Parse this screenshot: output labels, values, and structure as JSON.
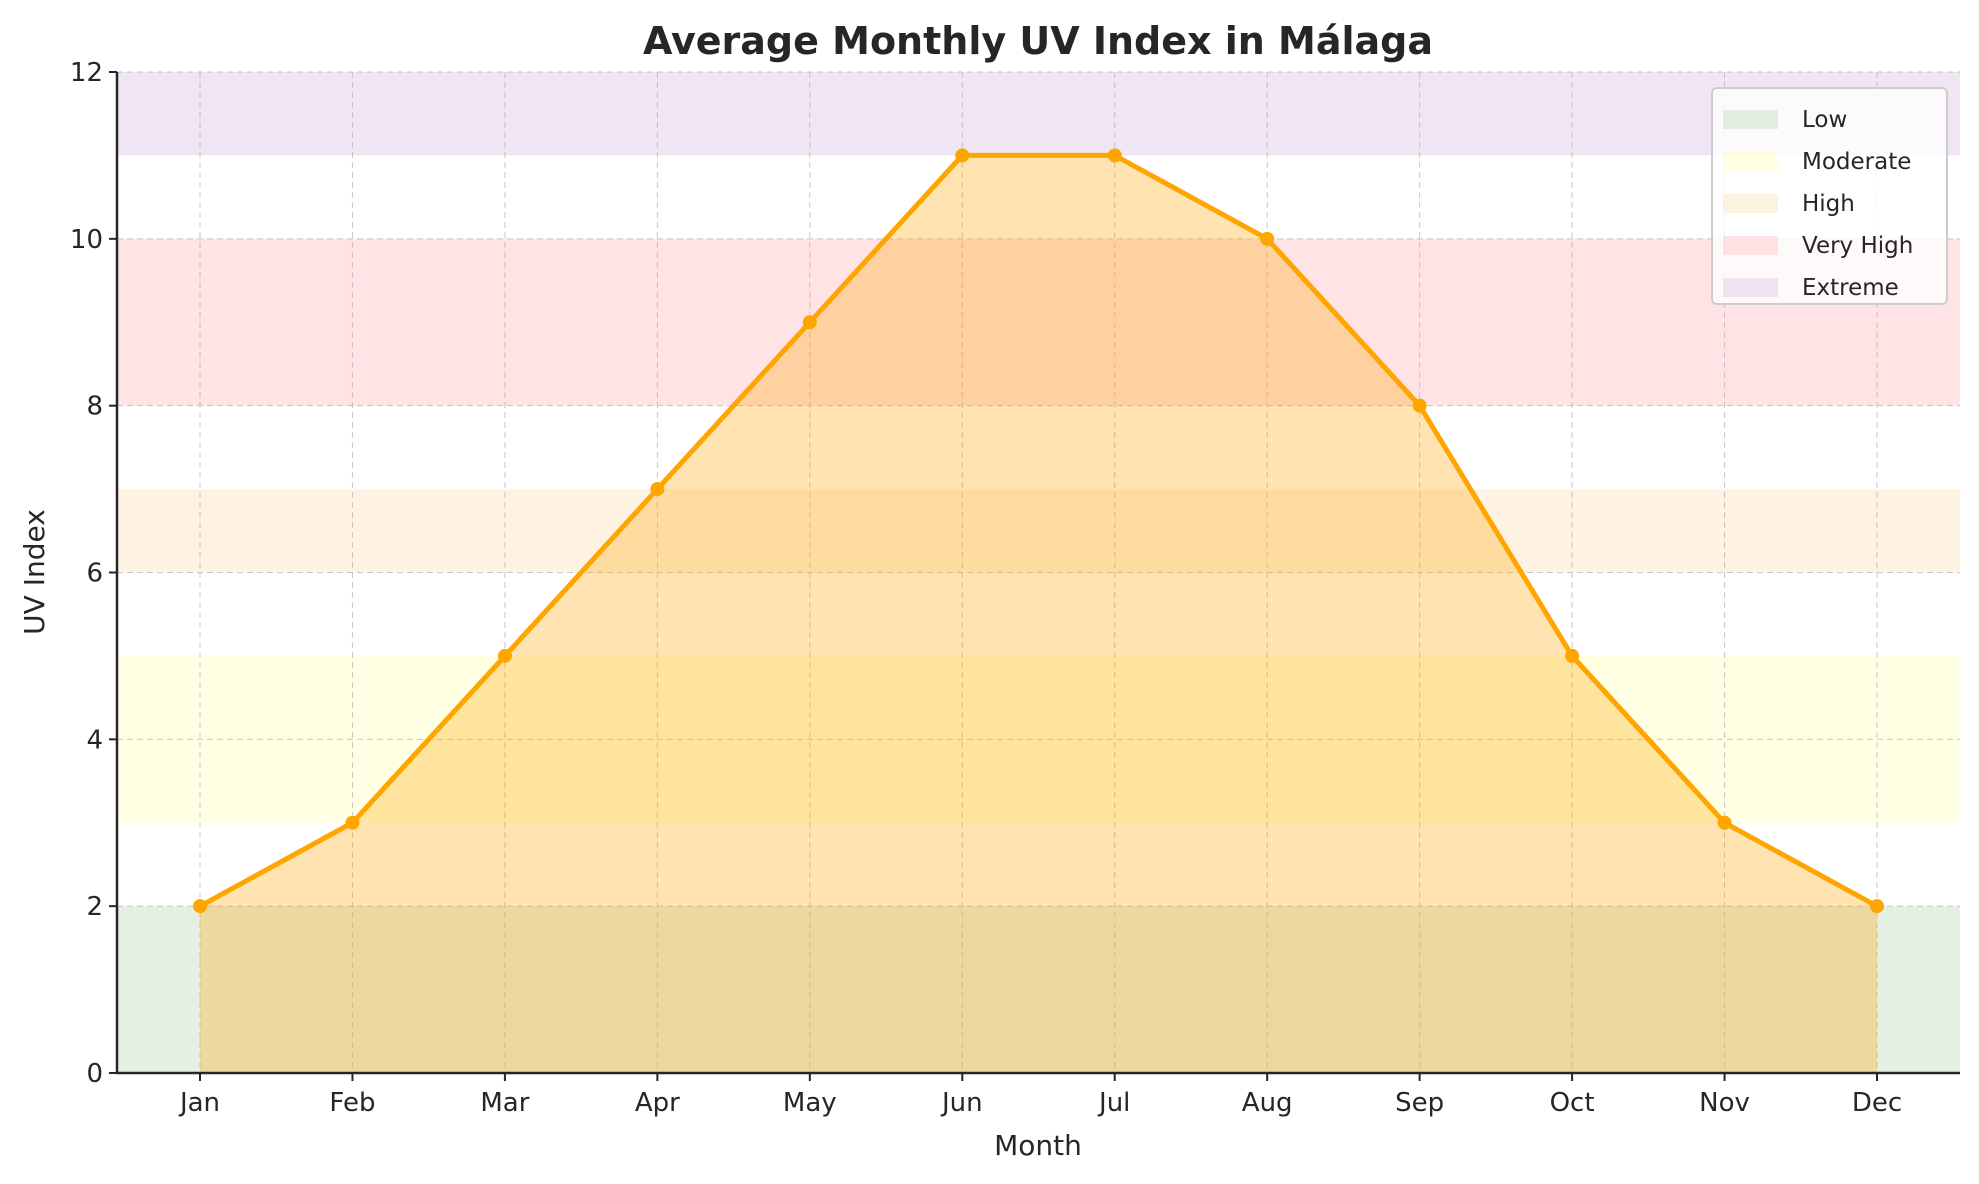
{
  "chart_data": {
    "type": "area",
    "title": "Average Monthly UV Index in Málaga",
    "xlabel": "Month",
    "ylabel": "UV Index",
    "categories": [
      "Jan",
      "Feb",
      "Mar",
      "Apr",
      "May",
      "Jun",
      "Jul",
      "Aug",
      "Sep",
      "Oct",
      "Nov",
      "Dec"
    ],
    "values": [
      2,
      3,
      5,
      7,
      9,
      11,
      11,
      10,
      8,
      5,
      3,
      2
    ],
    "ylim": [
      0,
      12
    ],
    "yticks": [
      0,
      2,
      4,
      6,
      8,
      10,
      12
    ],
    "grid": true,
    "legend_position": "top-right",
    "line_color": "#FFA500",
    "fill_color": "#FFA500",
    "bands": [
      {
        "name": "Low",
        "range": [
          0,
          2
        ],
        "color": "#C8E2C8"
      },
      {
        "name": "Moderate",
        "range": [
          3,
          5
        ],
        "color": "#FFFFC8"
      },
      {
        "name": "High",
        "range": [
          6,
          7
        ],
        "color": "#FDE8C8"
      },
      {
        "name": "Very High",
        "range": [
          8,
          10
        ],
        "color": "#FFC8CC"
      },
      {
        "name": "Extreme",
        "range": [
          11,
          12
        ],
        "color": "#E2CCE6"
      }
    ]
  }
}
